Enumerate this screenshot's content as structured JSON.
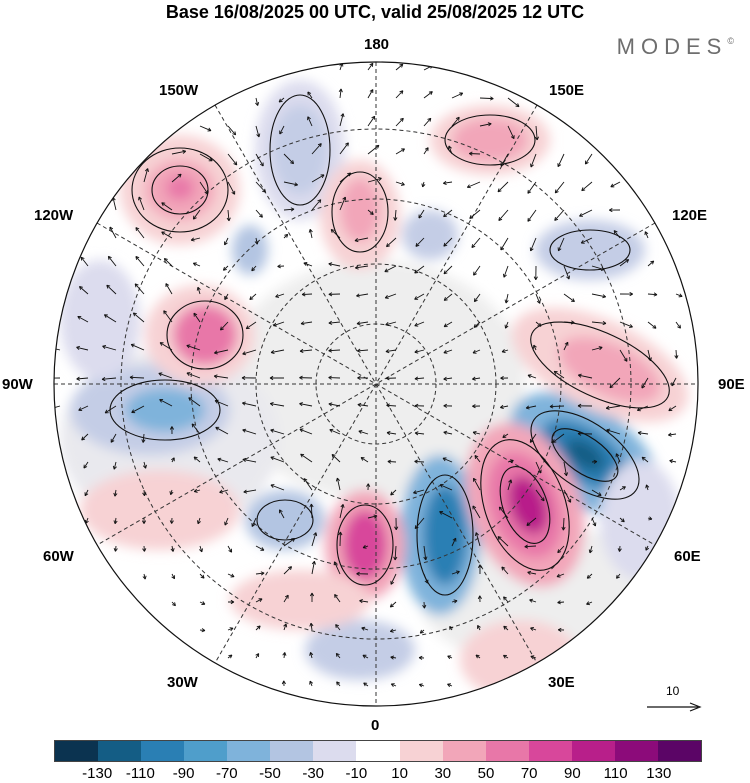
{
  "header": {
    "title": "Base 16/08/2025 00 UTC, valid 25/08/2025 12 UTC",
    "logo_text": "MODES",
    "logo_mark": "©"
  },
  "map": {
    "longitude_labels": {
      "top": "180",
      "bottom": "0",
      "left": "90W",
      "right": "90E",
      "upper_left": "150W",
      "upper_right": "150E",
      "mid_upper_left": "120W",
      "mid_upper_right": "120E",
      "mid_lower_left": "60W",
      "mid_lower_right": "60E",
      "lower_left": "30W",
      "lower_right": "30E"
    },
    "reference_vector": "10"
  },
  "colorbar": {
    "colors": [
      "#0b3350",
      "#145d85",
      "#2a7fb4",
      "#4f9ecb",
      "#7fb3db",
      "#b3c5e2",
      "#dcdcee",
      "#ffffff",
      "#f7d2d4",
      "#f2a6b9",
      "#e877a8",
      "#d8479b",
      "#b81f8a",
      "#8c0b7a",
      "#5b0566"
    ],
    "tick_labels": [
      "-130",
      "-110",
      "-90",
      "-70",
      "-50",
      "-30",
      "-10",
      "10",
      "30",
      "50",
      "70",
      "90",
      "110",
      "130"
    ]
  }
}
